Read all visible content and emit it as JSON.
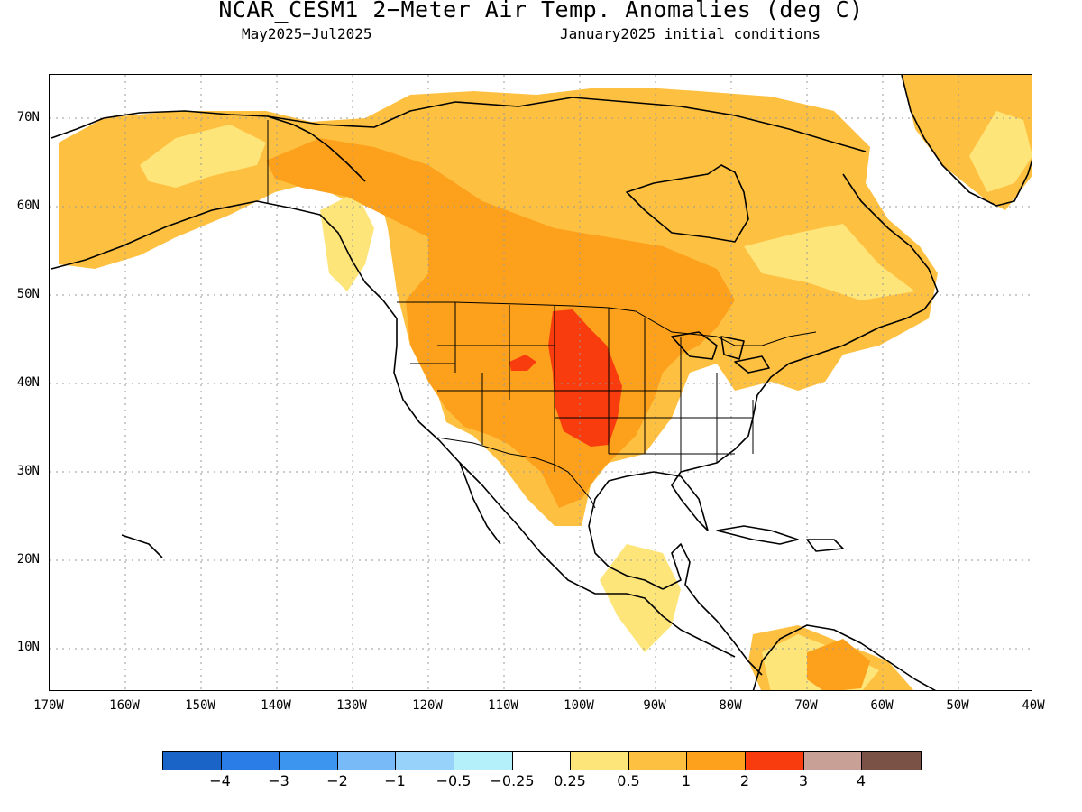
{
  "title": "NCAR_CESM1 2−Meter Air Temp. Anomalies (deg C)",
  "subtitle_left": "May2025−Jul2025",
  "subtitle_right": "January2025 initial conditions",
  "lat_labels": [
    "70N",
    "60N",
    "50N",
    "40N",
    "30N",
    "20N",
    "10N"
  ],
  "lon_labels": [
    "170W",
    "160W",
    "150W",
    "140W",
    "130W",
    "120W",
    "110W",
    "100W",
    "90W",
    "80W",
    "70W",
    "60W",
    "50W",
    "40W"
  ],
  "colorbar": {
    "colors": [
      "#1a64c8",
      "#2a7de6",
      "#3c96f0",
      "#78b9f8",
      "#96d2fa",
      "#b4f0fa",
      "#ffffff",
      "#fee57a",
      "#fec040",
      "#fda01c",
      "#f83c0e",
      "#c8a096",
      "#7a5246"
    ],
    "labels": [
      "−4",
      "−3",
      "−2",
      "−1",
      "−0.5",
      "−0.25",
      "0.25",
      "0.5",
      "1",
      "2",
      "3",
      "4"
    ]
  },
  "map": {
    "extent": {
      "lon": [
        -170,
        -40
      ],
      "lat": [
        5,
        75
      ]
    },
    "anomaly_fill_colors": {
      "0.25-0.5": "#fee57a",
      "0.5-1": "#fec040",
      "1-2": "#fda01c",
      "2-3": "#f83c0e"
    }
  }
}
